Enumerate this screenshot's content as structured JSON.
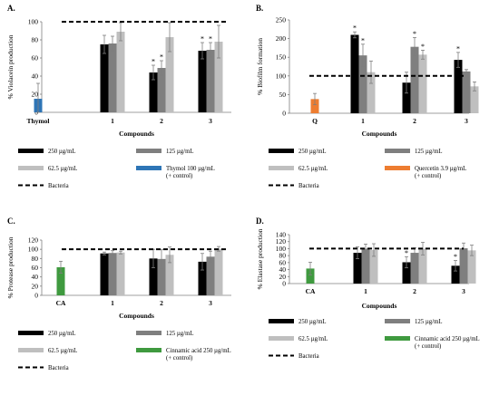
{
  "chart_data": [
    {
      "panel": "A.",
      "type": "bar",
      "ylabel": "% Violacein production",
      "xlabel": "Compounds",
      "ylim": [
        0,
        100
      ],
      "yticks": [
        0,
        20,
        40,
        60,
        80,
        100
      ],
      "categories": [
        "Thymol",
        "1",
        "2",
        "3"
      ],
      "series": [
        {
          "name": "250 µg/mL",
          "color": "#000000",
          "values": [
            null,
            75,
            44,
            68
          ],
          "errors": [
            null,
            10,
            8,
            9
          ],
          "stars": [
            false,
            false,
            true,
            true
          ]
        },
        {
          "name": "125 µg/mL",
          "color": "#7f7f7f",
          "values": [
            null,
            76,
            49,
            69
          ],
          "errors": [
            null,
            8,
            8,
            8
          ],
          "stars": [
            false,
            false,
            true,
            true
          ]
        },
        {
          "name": "62.5 µg/mL",
          "color": "#bfbfbf",
          "values": [
            null,
            89,
            83,
            78
          ],
          "errors": [
            null,
            10,
            16,
            18
          ],
          "stars": [
            false,
            false,
            false,
            false
          ]
        },
        {
          "name": "Thymol 100 µg/mL",
          "name_line2": "(+ control)",
          "color": "#2e75b6",
          "values": [
            15,
            null,
            null,
            null
          ],
          "errors": [
            17,
            null,
            null,
            null
          ],
          "stars": [
            false,
            false,
            false,
            false
          ]
        }
      ],
      "reference_line": {
        "name": "Bacteria",
        "value": 100
      }
    },
    {
      "panel": "B.",
      "type": "bar",
      "ylabel": "% Biofilm formation",
      "xlabel": "Compounds",
      "ylim": [
        0,
        250
      ],
      "yticks": [
        0,
        50,
        100,
        150,
        200,
        250
      ],
      "categories": [
        "Q",
        "1",
        "2",
        "3"
      ],
      "series": [
        {
          "name": "250 µg/mL",
          "color": "#000000",
          "values": [
            null,
            210,
            82,
            143
          ],
          "errors": [
            null,
            8,
            28,
            20
          ],
          "stars": [
            false,
            true,
            false,
            true
          ]
        },
        {
          "name": "125 µg/mL",
          "color": "#7f7f7f",
          "values": [
            null,
            155,
            178,
            112
          ],
          "errors": [
            null,
            30,
            25,
            5
          ],
          "stars": [
            false,
            true,
            true,
            false
          ]
        },
        {
          "name": "62.5 µg/mL",
          "color": "#bfbfbf",
          "values": [
            null,
            110,
            157,
            72
          ],
          "errors": [
            null,
            30,
            12,
            12
          ],
          "stars": [
            false,
            false,
            true,
            false
          ]
        },
        {
          "name": "Quercetin 3.9 µg/mL",
          "name_line2": "(+ control)",
          "color": "#ed7d31",
          "values": [
            38,
            null,
            null,
            null
          ],
          "errors": [
            15,
            null,
            null,
            null
          ],
          "stars": [
            false,
            false,
            false,
            false
          ]
        }
      ],
      "reference_line": {
        "name": "Bacteria",
        "value": 100
      }
    },
    {
      "panel": "C.",
      "type": "bar",
      "ylabel": "% Protease production",
      "xlabel": "Compounds",
      "ylim": [
        0,
        120
      ],
      "yticks": [
        0,
        20,
        40,
        60,
        80,
        100,
        120
      ],
      "categories": [
        "CA",
        "1",
        "2",
        "3"
      ],
      "series": [
        {
          "name": "250 µg/mL",
          "color": "#000000",
          "values": [
            null,
            91,
            80,
            73
          ],
          "errors": [
            null,
            3,
            20,
            18
          ],
          "stars": [
            false,
            false,
            false,
            false
          ]
        },
        {
          "name": "125 µg/mL",
          "color": "#7f7f7f",
          "values": [
            null,
            92,
            79,
            84
          ],
          "errors": [
            null,
            5,
            20,
            12
          ],
          "stars": [
            false,
            false,
            false,
            false
          ]
        },
        {
          "name": "62.5 µg/mL",
          "color": "#bfbfbf",
          "values": [
            null,
            93,
            88,
            101
          ],
          "errors": [
            null,
            3,
            17,
            5
          ],
          "stars": [
            false,
            false,
            false,
            false
          ]
        },
        {
          "name": "Cinnamic acid 250 µg/mL",
          "name_line2": "(+ control)",
          "color": "#3f9a3f",
          "values": [
            61,
            null,
            null,
            null
          ],
          "errors": [
            13,
            null,
            null,
            null
          ],
          "stars": [
            false,
            false,
            false,
            false
          ]
        }
      ],
      "reference_line": {
        "name": "Bacteria",
        "value": 100
      }
    },
    {
      "panel": "D.",
      "type": "bar",
      "ylabel": "% Elastase production",
      "xlabel": "Compounds",
      "ylim": [
        0,
        140
      ],
      "yticks": [
        0,
        20,
        40,
        60,
        80,
        100,
        120,
        140
      ],
      "categories": [
        "CA",
        "1",
        "2",
        "3"
      ],
      "series": [
        {
          "name": "250 µg/mL",
          "color": "#000000",
          "values": [
            null,
            88,
            61,
            51
          ],
          "errors": [
            null,
            17,
            16,
            15
          ],
          "stars": [
            false,
            false,
            true,
            true
          ]
        },
        {
          "name": "125 µg/mL",
          "color": "#7f7f7f",
          "values": [
            null,
            100,
            88,
            101
          ],
          "errors": [
            null,
            13,
            14,
            15
          ],
          "stars": [
            false,
            false,
            false,
            false
          ]
        },
        {
          "name": "62.5 µg/mL",
          "color": "#bfbfbf",
          "values": [
            null,
            96,
            100,
            95
          ],
          "errors": [
            null,
            18,
            18,
            15
          ],
          "stars": [
            false,
            false,
            false,
            false
          ]
        },
        {
          "name": "Cinnamic acid 250 µg/mL",
          "name_line2": "(+ control)",
          "color": "#3f9a3f",
          "values": [
            43,
            null,
            null,
            null
          ],
          "errors": [
            18,
            null,
            null,
            null
          ],
          "stars": [
            false,
            false,
            false,
            false
          ]
        }
      ],
      "reference_line": {
        "name": "Bacteria",
        "value": 100
      }
    }
  ]
}
